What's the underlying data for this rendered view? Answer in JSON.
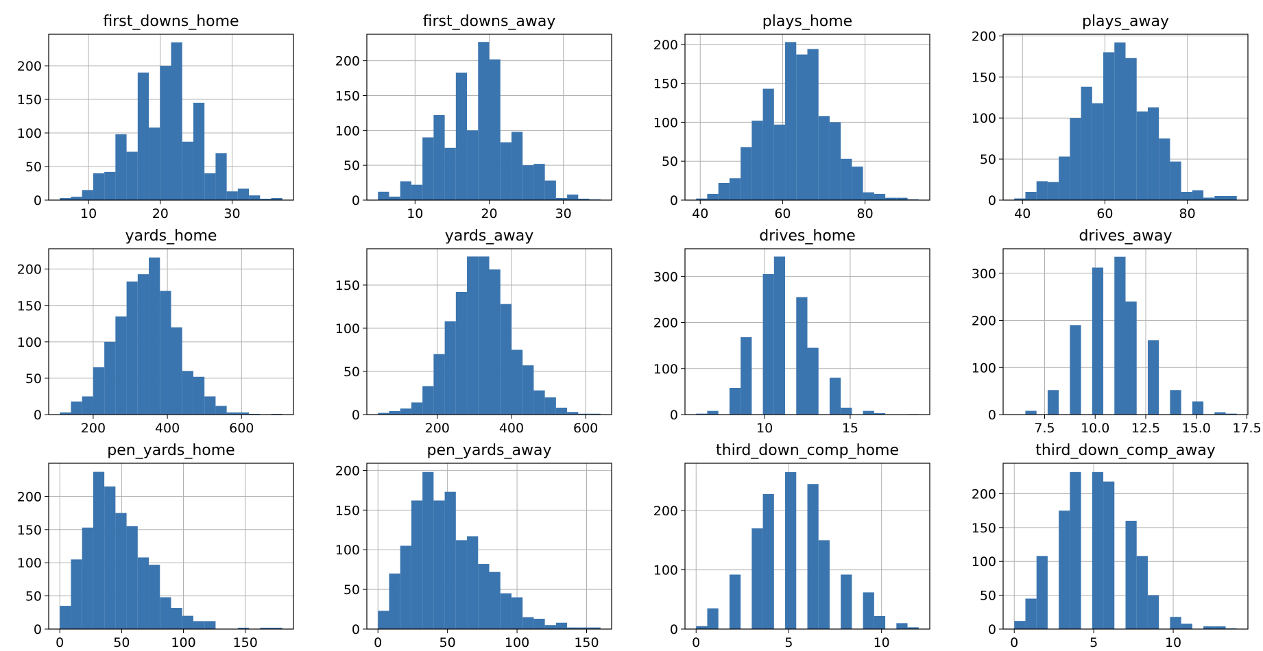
{
  "chart_data": [
    {
      "type": "histogram",
      "title": "first_downs_home",
      "color": "#3b75af",
      "grid": true,
      "bins": [
        6,
        7.55,
        9.1,
        10.65,
        12.2,
        13.75,
        15.3,
        16.85,
        18.4,
        19.95,
        21.5,
        23.05,
        24.6,
        26.15,
        27.7,
        29.25,
        30.8,
        32.35,
        33.9,
        35.45,
        37
      ],
      "values": [
        3,
        5,
        15,
        40,
        42,
        98,
        72,
        190,
        108,
        200,
        235,
        87,
        145,
        40,
        70,
        13,
        17,
        7,
        2,
        3
      ],
      "xlim": [
        4.45,
        38.55
      ],
      "xticks": [
        10,
        20,
        30
      ],
      "ylim": [
        0,
        247
      ],
      "yticks": [
        0,
        50,
        100,
        150,
        200
      ]
    },
    {
      "type": "histogram",
      "title": "first_downs_away",
      "color": "#3b75af",
      "grid": true,
      "bins": [
        5,
        6.5,
        8,
        9.5,
        11,
        12.5,
        14,
        15.5,
        17,
        18.5,
        20,
        21.5,
        23,
        24.5,
        26,
        27.5,
        29,
        30.5,
        32,
        33.5,
        35
      ],
      "values": [
        12,
        5,
        27,
        22,
        90,
        122,
        75,
        183,
        100,
        227,
        202,
        83,
        98,
        50,
        52,
        28,
        3,
        8,
        2,
        1
      ],
      "xlim": [
        3.5,
        36.5
      ],
      "xticks": [
        10,
        20,
        30
      ],
      "ylim": [
        0,
        238
      ],
      "yticks": [
        0,
        50,
        100,
        150,
        200
      ]
    },
    {
      "type": "histogram",
      "title": "plays_home",
      "color": "#3b75af",
      "grid": true,
      "bins": [
        39,
        41.7,
        44.4,
        47.1,
        49.8,
        52.5,
        55.2,
        57.9,
        60.6,
        63.3,
        66,
        68.7,
        71.4,
        74.1,
        76.8,
        79.5,
        82.2,
        84.9,
        87.6,
        90.3,
        93
      ],
      "values": [
        2,
        8,
        22,
        28,
        68,
        102,
        143,
        97,
        203,
        187,
        194,
        108,
        100,
        53,
        43,
        10,
        8,
        3,
        3,
        1
      ],
      "xlim": [
        36.3,
        95.7
      ],
      "xticks": [
        40,
        60,
        80
      ],
      "ylim": [
        0,
        213
      ],
      "yticks": [
        0,
        50,
        100,
        150,
        200
      ]
    },
    {
      "type": "histogram",
      "title": "plays_away",
      "color": "#3b75af",
      "grid": true,
      "bins": [
        38,
        40.7,
        43.4,
        46.1,
        48.8,
        51.5,
        54.2,
        56.9,
        59.6,
        62.3,
        65,
        67.7,
        70.4,
        73.1,
        75.8,
        78.5,
        81.2,
        83.9,
        86.6,
        89.3,
        92
      ],
      "values": [
        2,
        10,
        23,
        22,
        53,
        100,
        138,
        118,
        180,
        192,
        173,
        108,
        113,
        75,
        47,
        10,
        12,
        3,
        5,
        5
      ],
      "xlim": [
        35.3,
        94.7
      ],
      "xticks": [
        40,
        60,
        80
      ],
      "ylim": [
        0,
        202
      ],
      "yticks": [
        0,
        50,
        100,
        150,
        200
      ]
    },
    {
      "type": "histogram",
      "title": "yards_home",
      "color": "#3b75af",
      "grid": true,
      "bins": [
        110,
        140,
        170,
        200,
        230,
        260,
        290,
        320,
        350,
        380,
        410,
        440,
        470,
        500,
        530,
        560,
        590,
        620,
        650,
        680,
        710
      ],
      "values": [
        3,
        18,
        25,
        65,
        100,
        135,
        183,
        193,
        216,
        170,
        120,
        60,
        52,
        25,
        12,
        3,
        3,
        1,
        0,
        1
      ],
      "xlim": [
        80,
        740
      ],
      "xticks": [
        200,
        400,
        600
      ],
      "ylim": [
        0,
        228
      ],
      "yticks": [
        0,
        50,
        100,
        150,
        200
      ]
    },
    {
      "type": "histogram",
      "title": "yards_away",
      "color": "#3b75af",
      "grid": true,
      "bins": [
        40,
        70,
        100,
        130,
        160,
        190,
        220,
        250,
        280,
        310,
        340,
        370,
        400,
        430,
        460,
        490,
        520,
        550,
        580,
        610,
        640
      ],
      "values": [
        2,
        4,
        7,
        14,
        33,
        70,
        108,
        142,
        183,
        183,
        168,
        128,
        75,
        57,
        28,
        20,
        8,
        3,
        1,
        1
      ],
      "xlim": [
        10,
        670
      ],
      "xticks": [
        200,
        400,
        600
      ],
      "ylim": [
        0,
        192
      ],
      "yticks": [
        0,
        50,
        100,
        150
      ]
    },
    {
      "type": "histogram",
      "title": "drives_home",
      "color": "#3b75af",
      "grid": true,
      "bins": [
        6,
        6.65,
        7.3,
        7.95,
        8.6,
        9.25,
        9.9,
        10.55,
        11.2,
        11.85,
        12.5,
        13.15,
        13.8,
        14.45,
        15.1,
        15.75,
        16.4,
        17.05,
        17.7,
        18.35,
        19
      ],
      "values": [
        2,
        8,
        0,
        58,
        168,
        0,
        305,
        343,
        0,
        255,
        145,
        0,
        80,
        15,
        0,
        8,
        3,
        0,
        0,
        1
      ],
      "xlim": [
        5.35,
        19.65
      ],
      "xticks": [
        10,
        15
      ],
      "ylim": [
        0,
        360
      ],
      "yticks": [
        0,
        100,
        200,
        300
      ]
    },
    {
      "type": "histogram",
      "title": "drives_away",
      "color": "#3b75af",
      "grid": true,
      "bins": [
        6,
        6.55,
        7.1,
        7.65,
        8.2,
        8.75,
        9.3,
        9.85,
        10.4,
        10.95,
        11.5,
        12.05,
        12.6,
        13.15,
        13.7,
        14.25,
        14.8,
        15.35,
        15.9,
        16.45,
        17
      ],
      "values": [
        0,
        8,
        0,
        52,
        0,
        190,
        0,
        312,
        0,
        335,
        240,
        0,
        158,
        0,
        52,
        0,
        28,
        0,
        5,
        2
      ],
      "xlim": [
        5.45,
        17.55
      ],
      "xticks": [
        7.5,
        {
          "value": 10,
          "label": "10.0"
        },
        12.5,
        {
          "value": 15,
          "label": "15.0"
        },
        17.5
      ],
      "ylim": [
        0,
        352
      ],
      "yticks": [
        0,
        100,
        200,
        300
      ]
    },
    {
      "type": "histogram",
      "title": "pen_yards_home",
      "color": "#3b75af",
      "grid": true,
      "bins": [
        0,
        9,
        18,
        27,
        36,
        45,
        54,
        63,
        72,
        81,
        90,
        99,
        108,
        117,
        126,
        135,
        144,
        153,
        162,
        171,
        180
      ],
      "values": [
        35,
        105,
        153,
        237,
        215,
        175,
        155,
        108,
        97,
        48,
        32,
        20,
        12,
        12,
        0,
        0,
        2,
        0,
        2,
        2
      ],
      "xlim": [
        -9,
        189
      ],
      "xticks": [
        0,
        50,
        100,
        150
      ],
      "ylim": [
        0,
        250
      ],
      "yticks": [
        0,
        50,
        100,
        150,
        200
      ]
    },
    {
      "type": "histogram",
      "title": "pen_yards_away",
      "color": "#3b75af",
      "grid": true,
      "bins": [
        0,
        8,
        16,
        24,
        32,
        40,
        48,
        56,
        64,
        72,
        80,
        88,
        96,
        104,
        112,
        120,
        128,
        136,
        144,
        152,
        160
      ],
      "values": [
        23,
        70,
        105,
        162,
        198,
        162,
        173,
        112,
        117,
        82,
        72,
        45,
        40,
        15,
        13,
        5,
        8,
        2,
        2,
        2
      ],
      "xlim": [
        -8,
        168
      ],
      "xticks": [
        0,
        50,
        100,
        150
      ],
      "ylim": [
        0,
        209
      ],
      "yticks": [
        0,
        50,
        100,
        150,
        200
      ]
    },
    {
      "type": "histogram",
      "title": "third_down_comp_home",
      "color": "#3b75af",
      "grid": true,
      "bins": [
        0,
        0.6,
        1.2,
        1.8,
        2.4,
        3,
        3.6,
        4.2,
        4.8,
        5.4,
        6,
        6.6,
        7.2,
        7.8,
        8.4,
        9,
        9.6,
        10.2,
        10.8,
        11.4,
        12
      ],
      "values": [
        5,
        35,
        0,
        92,
        0,
        170,
        228,
        0,
        265,
        0,
        245,
        150,
        0,
        92,
        0,
        62,
        22,
        0,
        10,
        3
      ],
      "xlim": [
        -0.6,
        12.6
      ],
      "xticks": [
        0,
        5,
        10
      ],
      "ylim": [
        0,
        280
      ],
      "yticks": [
        0,
        100,
        200
      ]
    },
    {
      "type": "histogram",
      "title": "third_down_comp_away",
      "color": "#3b75af",
      "grid": true,
      "bins": [
        0,
        0.7,
        1.4,
        2.1,
        2.8,
        3.5,
        4.2,
        4.9,
        5.6,
        6.3,
        7,
        7.7,
        8.4,
        9.1,
        9.8,
        10.5,
        11.2,
        11.9,
        12.6,
        13.3,
        14
      ],
      "values": [
        12,
        45,
        108,
        0,
        175,
        232,
        0,
        232,
        218,
        0,
        160,
        108,
        50,
        0,
        18,
        8,
        0,
        4,
        4,
        1
      ],
      "xlim": [
        -0.7,
        14.7
      ],
      "xticks": [
        0,
        5,
        10
      ],
      "ylim": [
        0,
        245
      ],
      "yticks": [
        0,
        50,
        100,
        150,
        200
      ]
    }
  ]
}
